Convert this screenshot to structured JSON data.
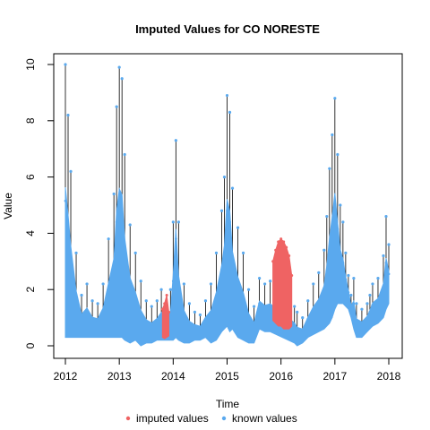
{
  "chart_data": {
    "type": "line",
    "title": "Imputed Values for  CO NORESTE",
    "xlabel": "Time",
    "ylabel": "Value",
    "xlim": [
      2011.9,
      2018.2
    ],
    "ylim": [
      -0.3,
      10.2
    ],
    "x_ticks": [
      2012,
      2013,
      2014,
      2015,
      2016,
      2017,
      2018
    ],
    "x_tick_labels": [
      "2012",
      "2013",
      "2014",
      "2015",
      "2016",
      "2017",
      "2018"
    ],
    "y_ticks": [
      0,
      2,
      4,
      6,
      8,
      10
    ],
    "y_tick_labels": [
      "0",
      "2",
      "4",
      "6",
      "8",
      "10"
    ],
    "grid": false,
    "legend_position": "bottom",
    "colors": {
      "imputed": "#ef6363",
      "known": "#5aa9ee",
      "line": "#000000"
    },
    "series": [
      {
        "name": "imputed values",
        "role": "imputed",
        "segments": [
          {
            "x": [
              2013.8,
              2013.84,
              2013.88,
              2013.92
            ],
            "low": [
              0.3,
              0.25,
              0.3,
              0.35
            ],
            "high": [
              1.3,
              1.5,
              1.8,
              1.2
            ]
          },
          {
            "x": [
              2015.85,
              2015.9,
              2015.95,
              2016.0,
              2016.05,
              2016.1,
              2016.15,
              2016.2
            ],
            "low": [
              0.9,
              0.8,
              0.7,
              0.7,
              0.6,
              0.6,
              0.6,
              0.7
            ],
            "high": [
              3.0,
              3.4,
              3.7,
              3.8,
              3.7,
              3.5,
              3.2,
              2.5
            ]
          }
        ]
      },
      {
        "name": "known values",
        "role": "known",
        "x": [
          2012.0,
          2012.05,
          2012.1,
          2012.2,
          2012.3,
          2012.4,
          2012.5,
          2012.6,
          2012.7,
          2012.8,
          2012.9,
          2012.95,
          2013.0,
          2013.05,
          2013.1,
          2013.2,
          2013.3,
          2013.4,
          2013.5,
          2013.6,
          2013.7,
          2013.78,
          2013.95,
          2014.0,
          2014.05,
          2014.1,
          2014.2,
          2014.3,
          2014.4,
          2014.5,
          2014.6,
          2014.7,
          2014.8,
          2014.9,
          2014.95,
          2015.0,
          2015.05,
          2015.1,
          2015.2,
          2015.3,
          2015.4,
          2015.5,
          2015.6,
          2015.7,
          2015.8,
          2016.25,
          2016.3,
          2016.4,
          2016.5,
          2016.6,
          2016.7,
          2016.8,
          2016.85,
          2016.9,
          2016.95,
          2017.0,
          2017.05,
          2017.1,
          2017.15,
          2017.2,
          2017.25,
          2017.3,
          2017.35,
          2017.4,
          2017.5,
          2017.6,
          2017.65,
          2017.7,
          2017.8,
          2017.9,
          2017.95,
          2018.0
        ],
        "low": [
          0.3,
          0.3,
          0.3,
          0.3,
          0.3,
          0.3,
          0.3,
          0.3,
          0.3,
          0.3,
          0.3,
          0.3,
          0.3,
          0.3,
          0.2,
          0.1,
          0.2,
          0.0,
          0.1,
          0.1,
          0.2,
          0.2,
          0.2,
          0.2,
          0.3,
          0.2,
          0.1,
          0.1,
          0.2,
          0.2,
          0.3,
          0.1,
          0.2,
          0.5,
          0.6,
          0.7,
          0.5,
          0.6,
          0.3,
          0.2,
          0.1,
          0.1,
          0.6,
          0.5,
          0.5,
          0.1,
          0.0,
          0.1,
          0.3,
          0.4,
          0.5,
          0.6,
          0.7,
          0.8,
          1.0,
          1.3,
          1.5,
          1.5,
          1.5,
          1.4,
          1.3,
          1.0,
          0.6,
          0.3,
          0.3,
          0.5,
          0.6,
          0.7,
          0.8,
          1.0,
          1.3,
          1.5
        ],
        "high": [
          10.0,
          8.2,
          6.2,
          3.3,
          1.8,
          2.2,
          1.6,
          1.5,
          2.2,
          3.8,
          5.4,
          8.5,
          9.9,
          9.5,
          6.8,
          4.3,
          3.3,
          2.3,
          1.6,
          1.4,
          1.6,
          2.0,
          2.0,
          4.4,
          7.3,
          4.4,
          2.2,
          1.5,
          1.2,
          1.1,
          1.6,
          2.2,
          3.3,
          4.8,
          6.0,
          8.9,
          8.3,
          5.6,
          4.2,
          3.3,
          2.0,
          1.4,
          2.4,
          2.2,
          2.3,
          1.4,
          1.2,
          1.0,
          1.6,
          2.2,
          2.6,
          3.4,
          4.6,
          6.3,
          7.5,
          8.8,
          6.8,
          5.0,
          4.4,
          3.3,
          2.5,
          1.8,
          2.4,
          1.5,
          1.3,
          1.5,
          1.8,
          2.2,
          2.4,
          3.2,
          4.6,
          3.6
        ]
      }
    ]
  },
  "legend": {
    "items": [
      {
        "label": "imputed values",
        "color": "#ef6363"
      },
      {
        "label": "known values",
        "color": "#5aa9ee"
      }
    ]
  }
}
